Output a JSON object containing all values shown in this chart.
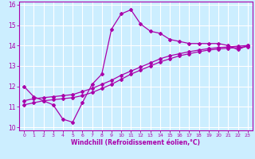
{
  "xlabel": "Windchill (Refroidissement éolien,°C)",
  "bg_color": "#cceeff",
  "grid_color": "#ffffff",
  "line_color": "#aa00aa",
  "xmin": 0,
  "xmax": 23,
  "ymin": 10,
  "ymax": 16,
  "xticks": [
    0,
    1,
    2,
    3,
    4,
    5,
    6,
    7,
    8,
    9,
    10,
    11,
    12,
    13,
    14,
    15,
    16,
    17,
    18,
    19,
    20,
    21,
    22,
    23
  ],
  "yticks": [
    10,
    11,
    12,
    13,
    14,
    15,
    16
  ],
  "curve1_x": [
    0,
    1,
    2,
    3,
    4,
    5,
    6,
    7,
    8,
    9,
    10,
    11,
    12,
    13,
    14,
    15,
    16,
    17,
    18,
    19,
    20,
    21,
    22,
    23
  ],
  "curve1_y": [
    12.0,
    11.5,
    11.3,
    11.1,
    10.4,
    10.25,
    11.2,
    12.1,
    12.6,
    14.8,
    15.55,
    15.75,
    15.05,
    14.7,
    14.6,
    14.3,
    14.2,
    14.1,
    14.1,
    14.1,
    14.1,
    14.0,
    13.8,
    14.0
  ],
  "curve2_x": [
    0,
    1,
    2,
    3,
    4,
    5,
    6,
    7,
    8,
    9,
    10,
    11,
    12,
    13,
    14,
    15,
    16,
    17,
    18,
    19,
    20,
    21,
    22,
    23
  ],
  "curve2_y": [
    11.1,
    11.2,
    11.3,
    11.35,
    11.4,
    11.45,
    11.55,
    11.7,
    11.9,
    12.1,
    12.35,
    12.6,
    12.8,
    13.0,
    13.2,
    13.35,
    13.5,
    13.6,
    13.7,
    13.78,
    13.83,
    13.87,
    13.9,
    13.95
  ],
  "curve3_x": [
    0,
    1,
    2,
    3,
    4,
    5,
    6,
    7,
    8,
    9,
    10,
    11,
    12,
    13,
    14,
    15,
    16,
    17,
    18,
    19,
    20,
    21,
    22,
    23
  ],
  "curve3_y": [
    11.3,
    11.4,
    11.45,
    11.5,
    11.55,
    11.6,
    11.75,
    11.9,
    12.1,
    12.3,
    12.55,
    12.75,
    12.95,
    13.15,
    13.35,
    13.5,
    13.6,
    13.7,
    13.78,
    13.85,
    13.9,
    13.93,
    13.97,
    14.0
  ]
}
